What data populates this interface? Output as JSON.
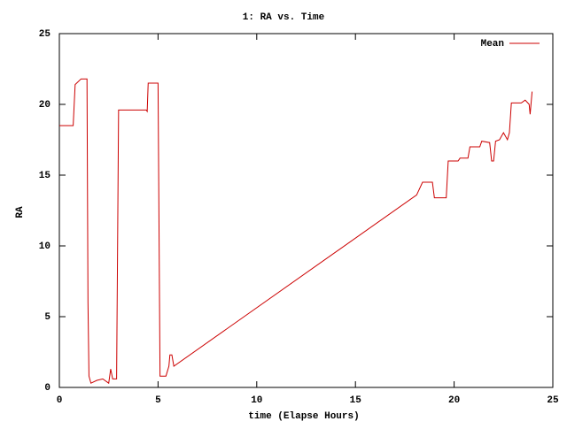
{
  "chart_data": {
    "type": "line",
    "title": "1: RA vs. Time",
    "xlabel": "time (Elapse Hours)",
    "ylabel": "RA",
    "x": [
      0,
      0.7,
      0.8,
      1.1,
      1.4,
      1.45,
      1.5,
      1.6,
      1.9,
      2.2,
      2.5,
      2.6,
      2.7,
      2.9,
      3.0,
      4.4,
      4.45,
      4.5,
      5.0,
      5.1,
      5.4,
      5.55,
      5.6,
      5.7,
      5.8,
      18.1,
      18.4,
      18.9,
      19.0,
      19.6,
      19.7,
      20.2,
      20.3,
      20.7,
      20.8,
      21.3,
      21.4,
      21.8,
      21.9,
      22.0,
      22.1,
      22.3,
      22.5,
      22.7,
      22.8,
      22.9,
      23.4,
      23.6,
      23.8,
      23.85,
      23.95
    ],
    "series": [
      {
        "name": "Mean",
        "color": "#cc0000",
        "values": [
          18.5,
          18.5,
          21.4,
          21.8,
          21.8,
          6,
          0.8,
          0.3,
          0.5,
          0.6,
          0.3,
          1.3,
          0.6,
          0.6,
          19.6,
          19.6,
          19.5,
          21.5,
          21.5,
          0.8,
          0.8,
          1.5,
          2.3,
          2.3,
          1.5,
          13.6,
          14.5,
          14.5,
          13.4,
          13.4,
          16,
          16,
          16.2,
          16.2,
          17,
          17,
          17.4,
          17.3,
          16,
          16,
          17.4,
          17.5,
          18,
          17.5,
          18,
          20.1,
          20.1,
          20.3,
          20,
          19.3,
          20.9
        ]
      }
    ],
    "xlim": [
      0,
      25
    ],
    "xticks": [
      0,
      5,
      10,
      15,
      20,
      25
    ],
    "ylim": [
      0,
      25
    ],
    "yticks": [
      0,
      5,
      10,
      15,
      20,
      25
    ],
    "legend": "top-right"
  }
}
